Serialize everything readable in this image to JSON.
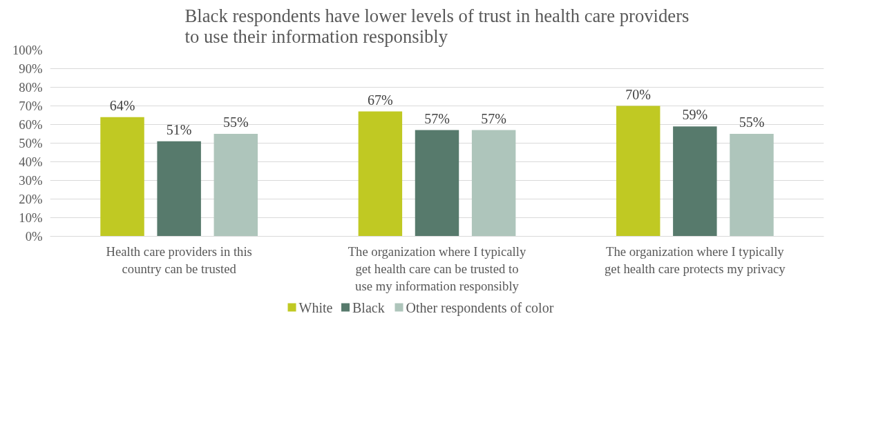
{
  "chart_data": {
    "type": "bar",
    "title": "Black respondents have lower levels of trust in health care providers to use their information responsibly",
    "categories": [
      "Health care providers in this country can be trusted",
      "The organization where I typically get health care can be trusted to use my information responsibly",
      "The organization where I typically get health care protects my privacy"
    ],
    "series": [
      {
        "name": "White",
        "color": "#c0c923",
        "values": [
          64,
          67,
          70
        ]
      },
      {
        "name": "Black",
        "color": "#577a6c",
        "values": [
          51,
          57,
          59
        ]
      },
      {
        "name": "Other respondents of color",
        "color": "#aec5bb",
        "values": [
          55,
          57,
          55
        ]
      }
    ],
    "ylim": [
      0,
      100
    ],
    "yticks": [
      {
        "value": 0,
        "label": "0%"
      },
      {
        "value": 10,
        "label": "10%"
      },
      {
        "value": 20,
        "label": "20%"
      },
      {
        "value": 30,
        "label": "30%"
      },
      {
        "value": 40,
        "label": "40%"
      },
      {
        "value": 50,
        "label": "50%"
      },
      {
        "value": 60,
        "label": "60%"
      },
      {
        "value": 70,
        "label": "70%"
      },
      {
        "value": 80,
        "label": "80%"
      },
      {
        "value": 90,
        "label": "90%"
      },
      {
        "value": 100,
        "label": "100%"
      }
    ],
    "value_labels": [
      [
        "64%",
        "67%",
        "70%"
      ],
      [
        "51%",
        "57%",
        "59%"
      ],
      [
        "55%",
        "57%",
        "55%"
      ]
    ],
    "grid": "y",
    "legend": "bottom"
  }
}
